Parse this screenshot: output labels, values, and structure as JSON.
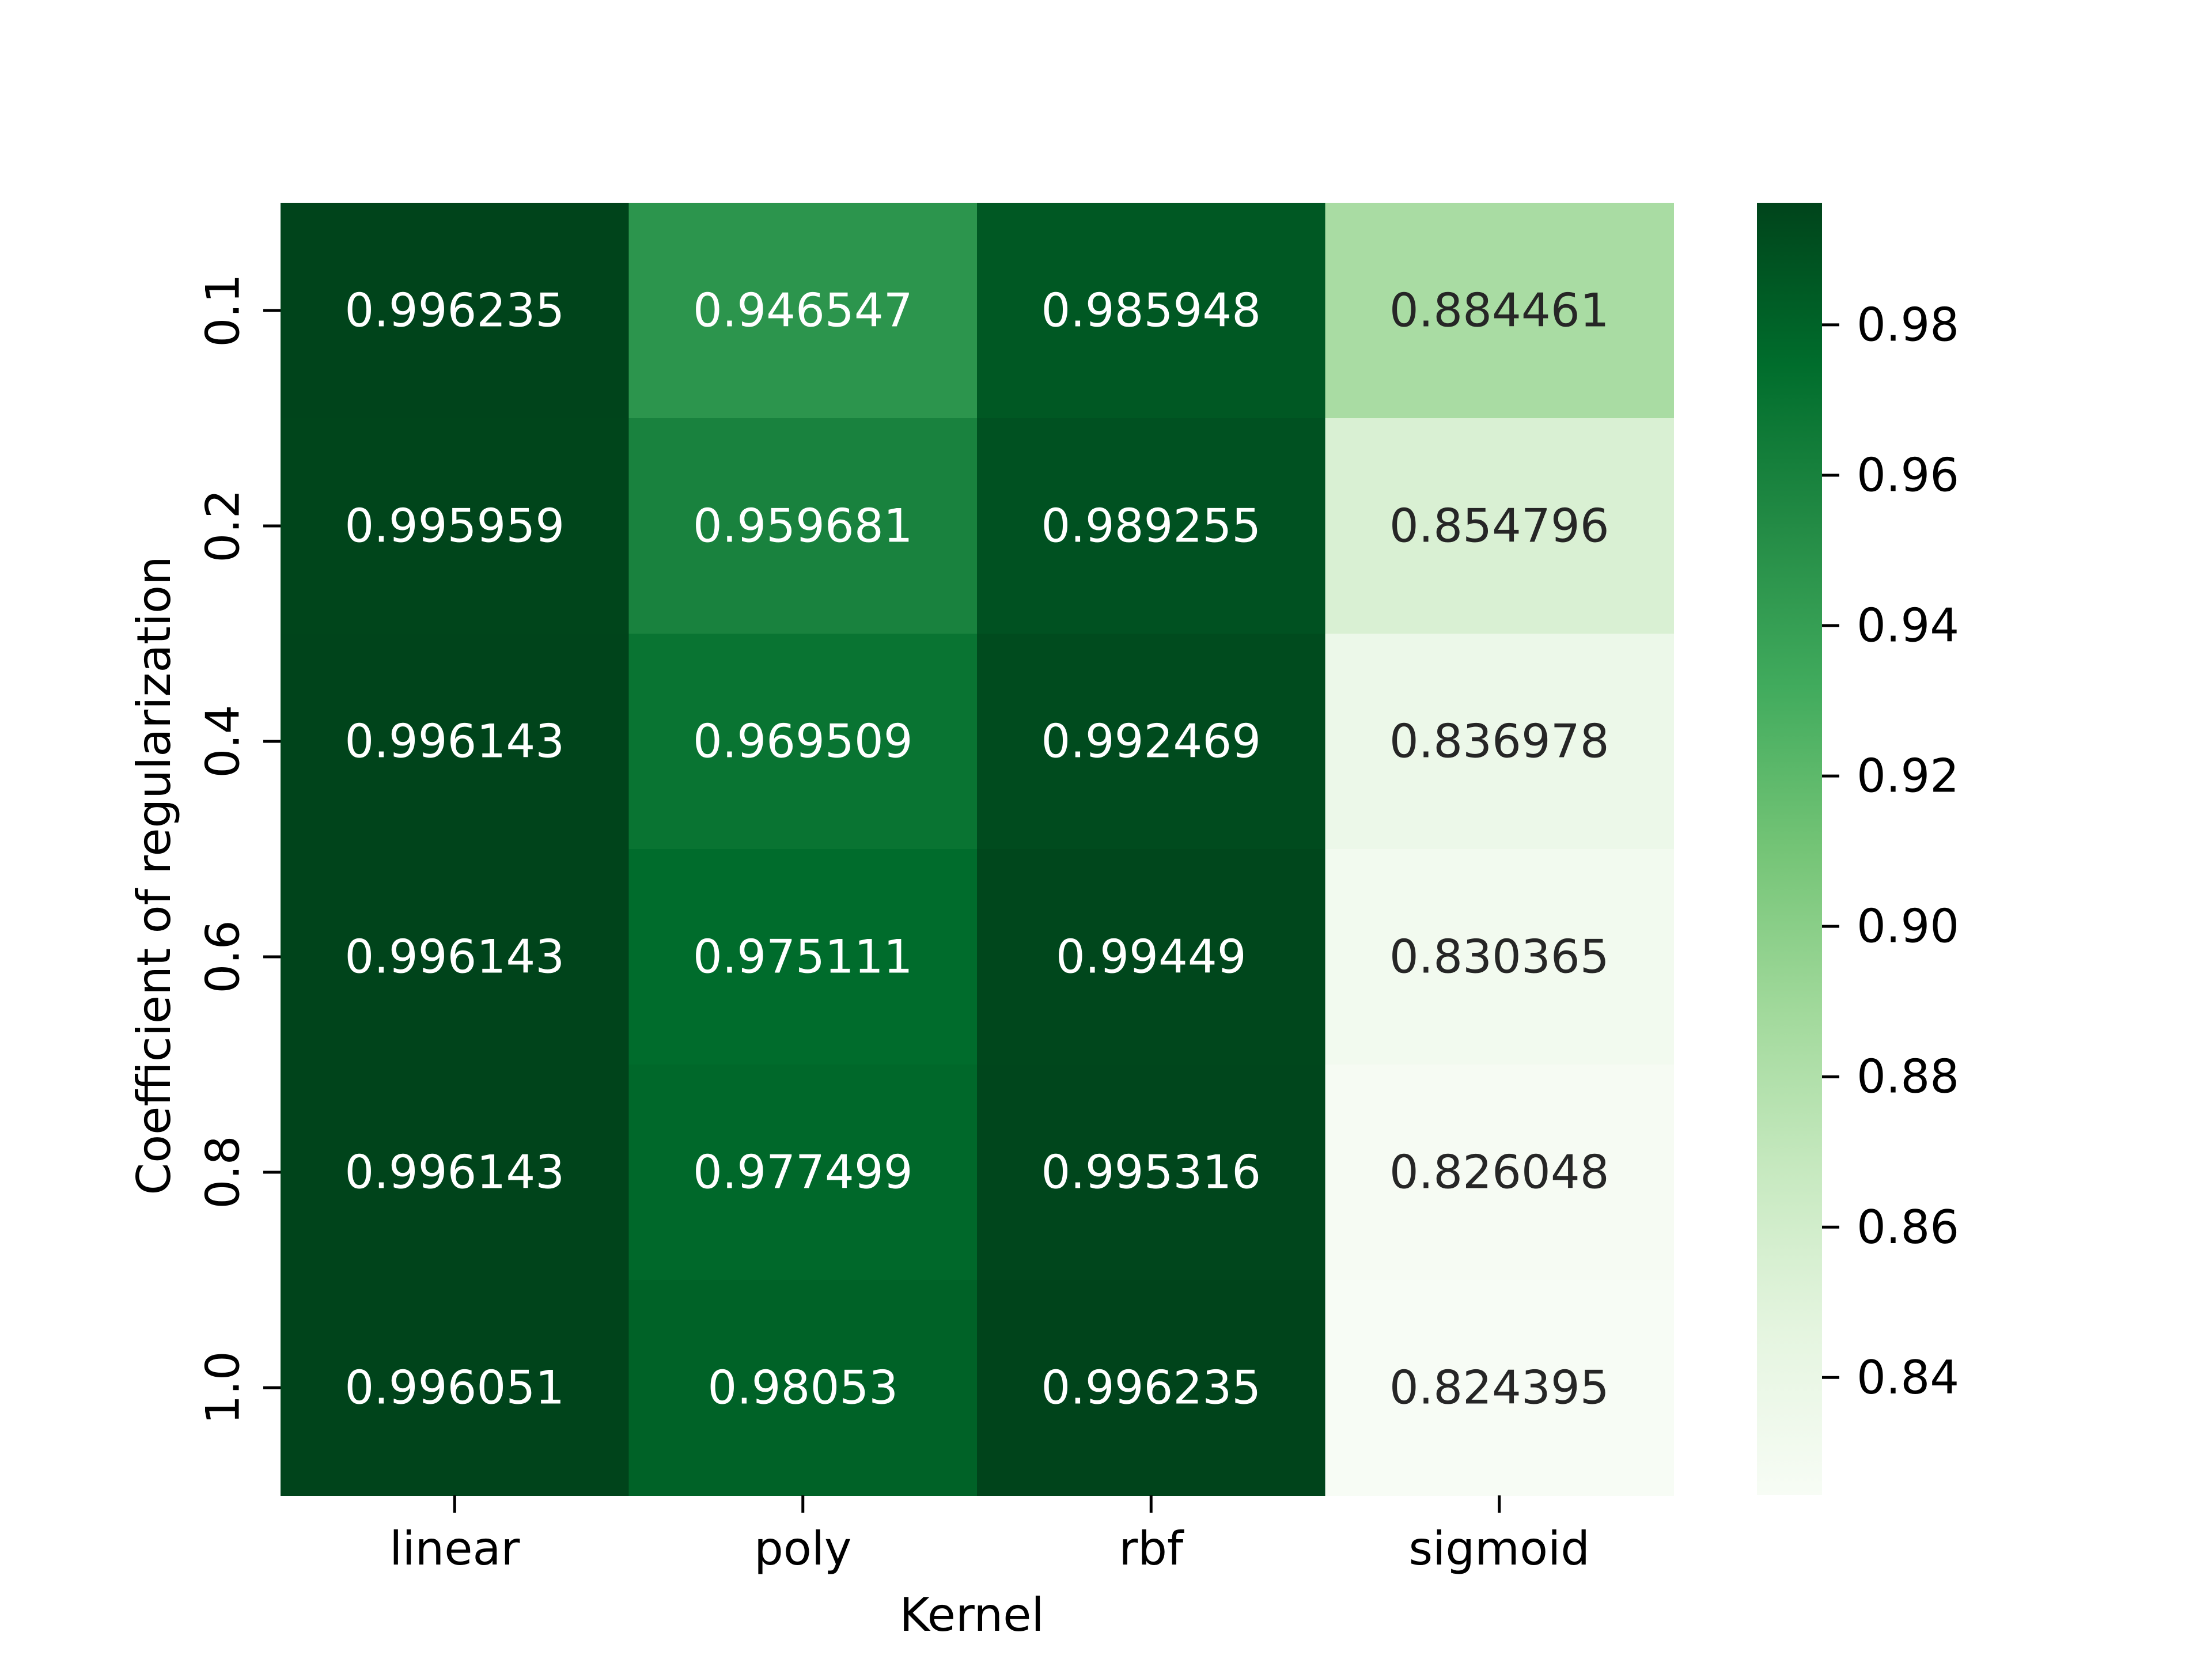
{
  "chart_data": {
    "type": "heatmap",
    "title": "",
    "xlabel": "Kernel",
    "ylabel": "Coefficient of regularization",
    "x_categories": [
      "linear",
      "poly",
      "rbf",
      "sigmoid"
    ],
    "y_categories": [
      "0.1",
      "0.2",
      "0.4",
      "0.6",
      "0.8",
      "1.0"
    ],
    "cell_labels": [
      [
        "0.996235",
        "0.946547",
        "0.985948",
        "0.884461"
      ],
      [
        "0.995959",
        "0.959681",
        "0.989255",
        "0.854796"
      ],
      [
        "0.996143",
        "0.969509",
        "0.992469",
        "0.836978"
      ],
      [
        "0.996143",
        "0.975111",
        "0.99449",
        "0.830365"
      ],
      [
        "0.996143",
        "0.977499",
        "0.995316",
        "0.826048"
      ],
      [
        "0.996051",
        "0.98053",
        "0.996235",
        "0.824395"
      ]
    ],
    "values": [
      [
        0.996235,
        0.946547,
        0.985948,
        0.884461
      ],
      [
        0.995959,
        0.959681,
        0.989255,
        0.854796
      ],
      [
        0.996143,
        0.969509,
        0.992469,
        0.836978
      ],
      [
        0.996143,
        0.975111,
        0.99449,
        0.830365
      ],
      [
        0.996143,
        0.977499,
        0.995316,
        0.826048
      ],
      [
        0.996051,
        0.98053,
        0.996235,
        0.824395
      ]
    ],
    "colorbar": {
      "range": [
        0.824395,
        0.996235
      ],
      "ticks": [
        0.84,
        0.86,
        0.88,
        0.9,
        0.92,
        0.94,
        0.96,
        0.98
      ],
      "tick_labels": [
        "0.84",
        "0.86",
        "0.88",
        "0.90",
        "0.92",
        "0.94",
        "0.96",
        "0.98"
      ]
    },
    "colormap": "Greens",
    "colormap_stops": [
      "#f7fcf5",
      "#e5f5e0",
      "#c7e9c0",
      "#a1d99b",
      "#74c476",
      "#41ab5d",
      "#238b45",
      "#006d2c",
      "#00441b"
    ],
    "label_colors": {
      "on_dark": "#ffffff",
      "on_light": "#262626"
    },
    "grid": false,
    "legend": "colorbar-right"
  }
}
